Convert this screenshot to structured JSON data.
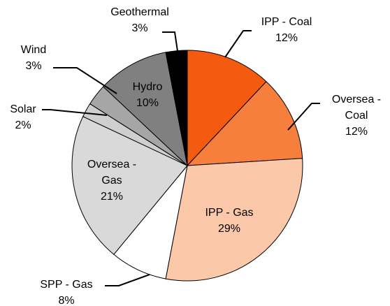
{
  "chart_data": {
    "type": "pie",
    "categories": [
      "IPP - Coal",
      "Oversea - Coal",
      "IPP - Gas",
      "SPP - Gas",
      "Oversea - Gas",
      "Solar",
      "Wind",
      "Hydro",
      "Geothermal"
    ],
    "values": [
      12,
      12,
      29,
      8,
      21,
      2,
      3,
      10,
      3
    ],
    "value_labels": [
      "12%",
      "12%",
      "29%",
      "8%",
      "21%",
      "2%",
      "3%",
      "10%",
      "3%"
    ],
    "colors": [
      "#f45a10",
      "#f67f3e",
      "#fbc8aa",
      "#ffffff",
      "#d9d9d9",
      "#cfcfcf",
      "#a6a6a6",
      "#808080",
      "#000000"
    ]
  }
}
